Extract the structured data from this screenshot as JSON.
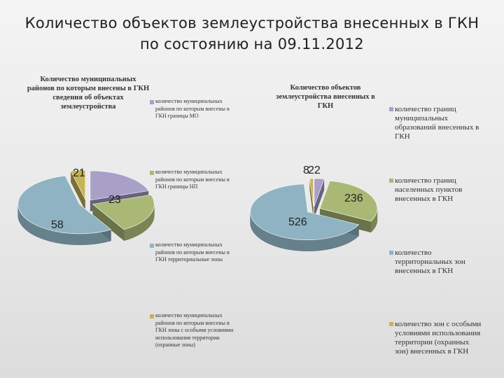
{
  "slide": {
    "title": "Количество объектов землеустройства внесенных в ГКН по состоянию на 09.11.2012"
  },
  "colors": {
    "slice_1": "#a8a0c6",
    "slice_2": "#aab876",
    "slice_3": "#8fb3c2",
    "slice_4": "#c8b258"
  },
  "chart_data": [
    {
      "type": "pie",
      "style": "3d-exploded",
      "title": "Количество муниципальных районов по которым внесены в ГКН сведения об объектах землеустройства",
      "legend_position": "right",
      "series": [
        {
          "labels": [
            "количество муниципальных районов по которым внесены в ГКН границы МО",
            "количество муниципальных районов по которым внесены в ГКН границы НП",
            "количество муниципальных районов по которым внесены в ГКН территориальные зоны",
            "количество муниципальных районов по которым внесены в ГКН зоны с особыми условиями использования территории (охранные зоны)"
          ],
          "values": [
            21,
            23,
            58,
            4
          ],
          "value_labels": [
            "21",
            "23",
            "58",
            ""
          ]
        }
      ]
    },
    {
      "type": "pie",
      "style": "3d-exploded",
      "title": "Количество объектов землеустройства внесенных в ГКН",
      "legend_position": "right",
      "series": [
        {
          "labels": [
            "количество границ муниципальных образований внесенных в ГКН",
            "количество границ населенных пунктов внесенных в ГКН",
            "количество территориальных зон внесенных в ГКН",
            "количество зон с особыми условиями использования территории (охранных зон) внесенных в ГКН"
          ],
          "values": [
            22,
            236,
            526,
            8
          ],
          "value_labels": [
            "22",
            "236",
            "526",
            "8"
          ]
        }
      ]
    }
  ]
}
